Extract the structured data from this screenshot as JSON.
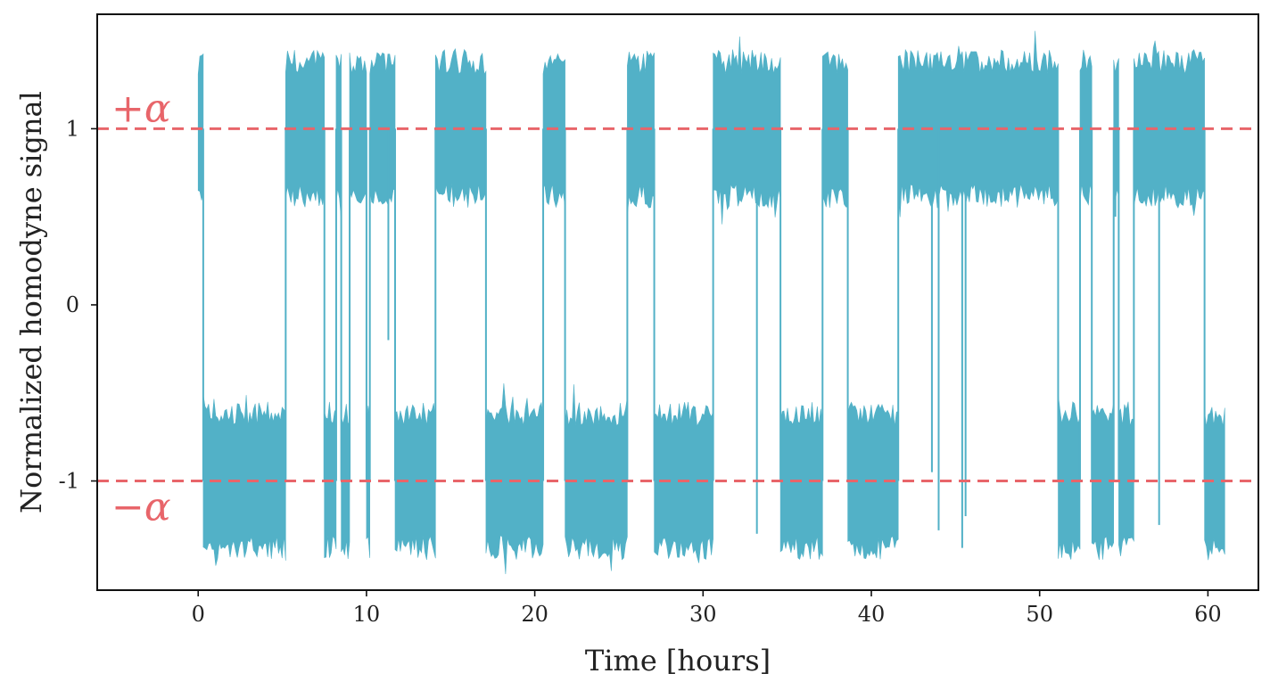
{
  "chart_data": {
    "type": "line",
    "xlabel": "Time [hours]",
    "ylabel": "Normalized homodyne signal",
    "xlim": [
      -6,
      63
    ],
    "ylim": [
      -1.62,
      1.65
    ],
    "x_ticks": [
      0,
      10,
      20,
      30,
      40,
      50,
      60
    ],
    "x_tick_labels": [
      "0",
      "10",
      "20",
      "30",
      "40",
      "50",
      "60"
    ],
    "y_ticks": [
      -1,
      0,
      1
    ],
    "y_tick_labels": [
      "-1",
      "0",
      "1"
    ],
    "grid": false,
    "reference_lines": [
      {
        "y": 1,
        "label": "+α",
        "color": "#e8656a",
        "style": "dashed"
      },
      {
        "y": -1,
        "label": "−α",
        "color": "#e8656a",
        "style": "dashed"
      }
    ],
    "series": [
      {
        "color": "#52b1c7",
        "noise_band_halfwidth": 0.33,
        "state_segments": [
          {
            "start": 0.0,
            "end": 0.3,
            "state": 1
          },
          {
            "start": 0.3,
            "end": 5.2,
            "state": -1
          },
          {
            "start": 5.2,
            "end": 7.5,
            "state": 1
          },
          {
            "start": 7.5,
            "end": 8.2,
            "state": -1
          },
          {
            "start": 8.2,
            "end": 8.5,
            "state": 1
          },
          {
            "start": 8.5,
            "end": 9.0,
            "state": -1
          },
          {
            "start": 9.0,
            "end": 10.0,
            "state": 1
          },
          {
            "start": 10.0,
            "end": 10.2,
            "state": -1
          },
          {
            "start": 10.2,
            "end": 11.7,
            "state": 1
          },
          {
            "start": 11.7,
            "end": 14.1,
            "state": -1
          },
          {
            "start": 14.1,
            "end": 17.1,
            "state": 1
          },
          {
            "start": 17.1,
            "end": 20.5,
            "state": -1
          },
          {
            "start": 20.5,
            "end": 21.8,
            "state": 1
          },
          {
            "start": 21.8,
            "end": 25.5,
            "state": -1
          },
          {
            "start": 25.5,
            "end": 27.1,
            "state": 1
          },
          {
            "start": 27.1,
            "end": 30.6,
            "state": -1
          },
          {
            "start": 30.6,
            "end": 34.6,
            "state": 1
          },
          {
            "start": 34.6,
            "end": 37.1,
            "state": -1
          },
          {
            "start": 37.1,
            "end": 38.6,
            "state": 1
          },
          {
            "start": 38.6,
            "end": 41.6,
            "state": -1
          },
          {
            "start": 41.6,
            "end": 51.1,
            "state": 1
          },
          {
            "start": 51.1,
            "end": 52.4,
            "state": -1
          },
          {
            "start": 52.4,
            "end": 53.1,
            "state": 1
          },
          {
            "start": 53.1,
            "end": 54.4,
            "state": -1
          },
          {
            "start": 54.4,
            "end": 54.7,
            "state": 1
          },
          {
            "start": 54.7,
            "end": 55.6,
            "state": -1
          },
          {
            "start": 55.6,
            "end": 59.8,
            "state": 1
          },
          {
            "start": 59.8,
            "end": 61.0,
            "state": -1
          }
        ],
        "spikes": [
          {
            "x": 33.2,
            "y": -1.3
          },
          {
            "x": 43.6,
            "y": -0.95
          },
          {
            "x": 44.0,
            "y": -1.28
          },
          {
            "x": 45.4,
            "y": -1.38
          },
          {
            "x": 45.6,
            "y": -1.2
          },
          {
            "x": 57.1,
            "y": -1.25
          },
          {
            "x": 54.5,
            "y": 0.5
          },
          {
            "x": 11.3,
            "y": -0.2
          }
        ]
      }
    ]
  }
}
